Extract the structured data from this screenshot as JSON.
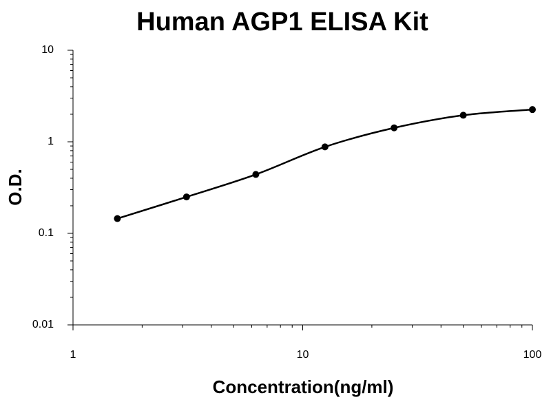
{
  "chart_data": {
    "type": "scatter",
    "title": "Human AGP1 ELISA Kit",
    "x_label": "Concentration(ng/ml)",
    "y_label": "O.D.",
    "x_scale": "log",
    "y_scale": "log",
    "xlim": [
      1,
      100
    ],
    "xticks": [
      1,
      10,
      100
    ],
    "ylim": [
      0.01,
      10
    ],
    "yticks": [
      0.01,
      0.1,
      1,
      10
    ],
    "series": [
      {
        "color": "#000000",
        "x": [
          1.56,
          3.12,
          6.25,
          12.5,
          25,
          50,
          100
        ],
        "values": [
          0.145,
          0.25,
          0.44,
          0.88,
          1.42,
          1.95,
          2.25
        ]
      }
    ]
  }
}
